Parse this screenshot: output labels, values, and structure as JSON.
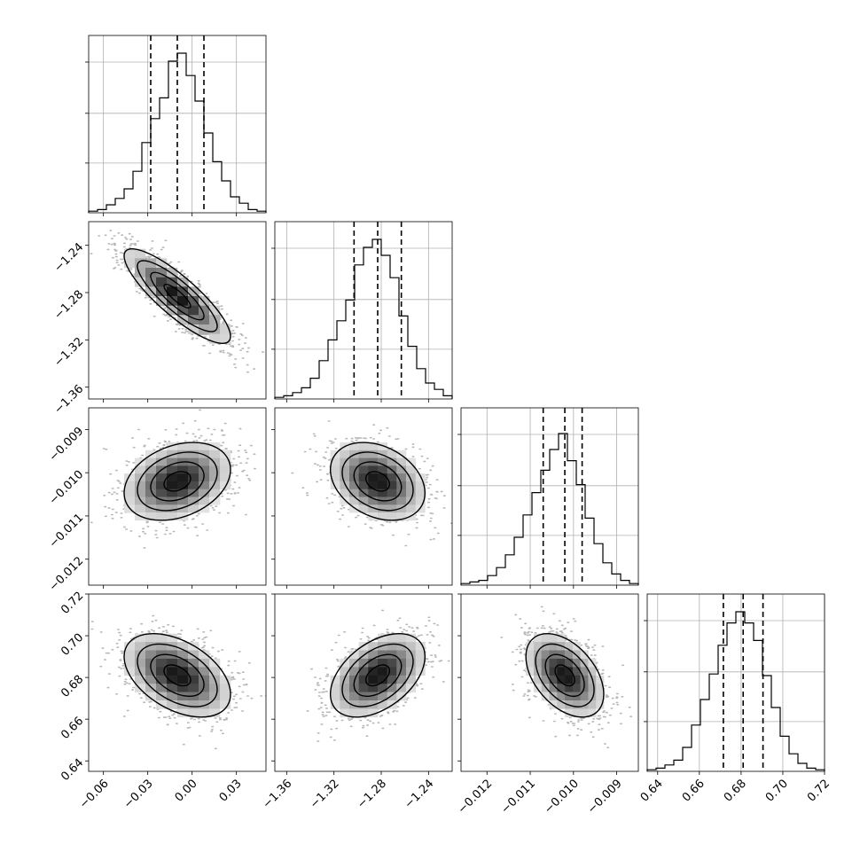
{
  "chart_data": {
    "type": "corner",
    "title": "",
    "grid": true,
    "parameters": [
      {
        "index": 0,
        "median": -0.01,
        "q16": -0.028,
        "q84": 0.008,
        "sd": 0.018,
        "range": [
          -0.07,
          0.05
        ],
        "ticks": [
          -0.06,
          -0.03,
          0.0,
          0.03
        ],
        "tick_labels": [
          "−0.06",
          "−0.03",
          "0.00",
          "0.03"
        ],
        "hist": [
          0.01,
          0.02,
          0.05,
          0.09,
          0.15,
          0.26,
          0.44,
          0.59,
          0.72,
          0.95,
          1.0,
          0.86,
          0.7,
          0.5,
          0.32,
          0.2,
          0.1,
          0.06,
          0.02,
          0.01
        ]
      },
      {
        "index": 1,
        "median": -1.283,
        "q16": -1.303,
        "q84": -1.263,
        "sd": 0.02,
        "range": [
          -1.37,
          -1.22
        ],
        "ticks": [
          -1.36,
          -1.32,
          -1.28,
          -1.24
        ],
        "tick_labels": [
          "−1.36",
          "−1.32",
          "−1.28",
          "−1.24"
        ],
        "hist": [
          0.01,
          0.02,
          0.04,
          0.07,
          0.13,
          0.24,
          0.37,
          0.49,
          0.62,
          0.84,
          0.95,
          1.0,
          0.9,
          0.76,
          0.52,
          0.33,
          0.19,
          0.1,
          0.06,
          0.02
        ]
      },
      {
        "index": 2,
        "median": -0.0102,
        "q16": -0.0107,
        "q84": -0.0098,
        "sd": 0.00045,
        "range": [
          -0.0126,
          -0.0085
        ],
        "ticks": [
          -0.012,
          -0.011,
          -0.01,
          -0.009
        ],
        "tick_labels": [
          "−0.012",
          "−0.011",
          "−0.010",
          "−0.009"
        ],
        "hist": [
          0.01,
          0.02,
          0.03,
          0.06,
          0.11,
          0.19,
          0.3,
          0.44,
          0.58,
          0.72,
          0.85,
          0.95,
          0.78,
          0.63,
          0.42,
          0.26,
          0.14,
          0.07,
          0.03,
          0.01
        ]
      },
      {
        "index": 3,
        "median": 0.681,
        "q16": 0.6715,
        "q84": 0.6905,
        "sd": 0.01,
        "range": [
          0.635,
          0.72
        ],
        "ticks": [
          0.64,
          0.66,
          0.68,
          0.7,
          0.72
        ],
        "tick_labels": [
          "0.64",
          "0.66",
          "0.68",
          "0.70",
          "0.72"
        ],
        "hist": [
          0.01,
          0.02,
          0.04,
          0.07,
          0.15,
          0.29,
          0.45,
          0.61,
          0.79,
          0.93,
          1.0,
          0.93,
          0.82,
          0.6,
          0.4,
          0.22,
          0.11,
          0.05,
          0.02,
          0.01
        ]
      }
    ],
    "correlations": [
      {
        "i": 1,
        "j": 0,
        "rho": -0.85
      },
      {
        "i": 2,
        "j": 0,
        "rho": 0.3
      },
      {
        "i": 2,
        "j": 1,
        "rho": -0.3
      },
      {
        "i": 3,
        "j": 0,
        "rho": -0.45
      },
      {
        "i": 3,
        "j": 1,
        "rho": 0.45
      },
      {
        "i": 3,
        "j": 2,
        "rho": -0.45
      }
    ]
  }
}
